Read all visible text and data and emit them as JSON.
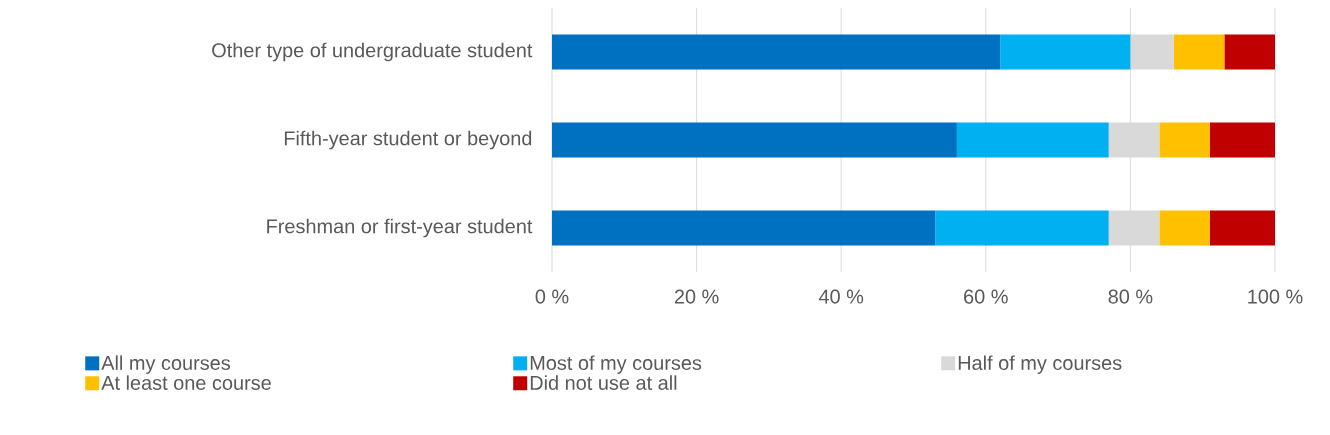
{
  "chart_data": {
    "type": "bar",
    "orientation": "horizontal",
    "stacked": true,
    "categories": [
      "Other type of undergraduate student",
      "Fifth-year student or beyond",
      "Freshman or first-year student"
    ],
    "series": [
      {
        "name": "All my courses",
        "color": "#0070c0",
        "values": [
          62,
          56,
          53
        ]
      },
      {
        "name": "Most of my courses",
        "color": "#00b0f0",
        "values": [
          18,
          21,
          24
        ]
      },
      {
        "name": "Half of my courses",
        "color": "#d9d9d9",
        "values": [
          6,
          7,
          7
        ]
      },
      {
        "name": "At least one course",
        "color": "#ffc000",
        "values": [
          7,
          7,
          7
        ]
      },
      {
        "name": "Did not use at all",
        "color": "#c00000",
        "values": [
          7,
          9,
          9
        ]
      }
    ],
    "xlim": [
      0,
      100
    ],
    "xticks": [
      {
        "value": 0,
        "label": "0 %"
      },
      {
        "value": 20,
        "label": "20 %"
      },
      {
        "value": 40,
        "label": "40 %"
      },
      {
        "value": 60,
        "label": "60 %"
      },
      {
        "value": 80,
        "label": "80 %"
      },
      {
        "value": 100,
        "label": "100 %"
      }
    ],
    "grid": "x",
    "legend": "bottom"
  }
}
